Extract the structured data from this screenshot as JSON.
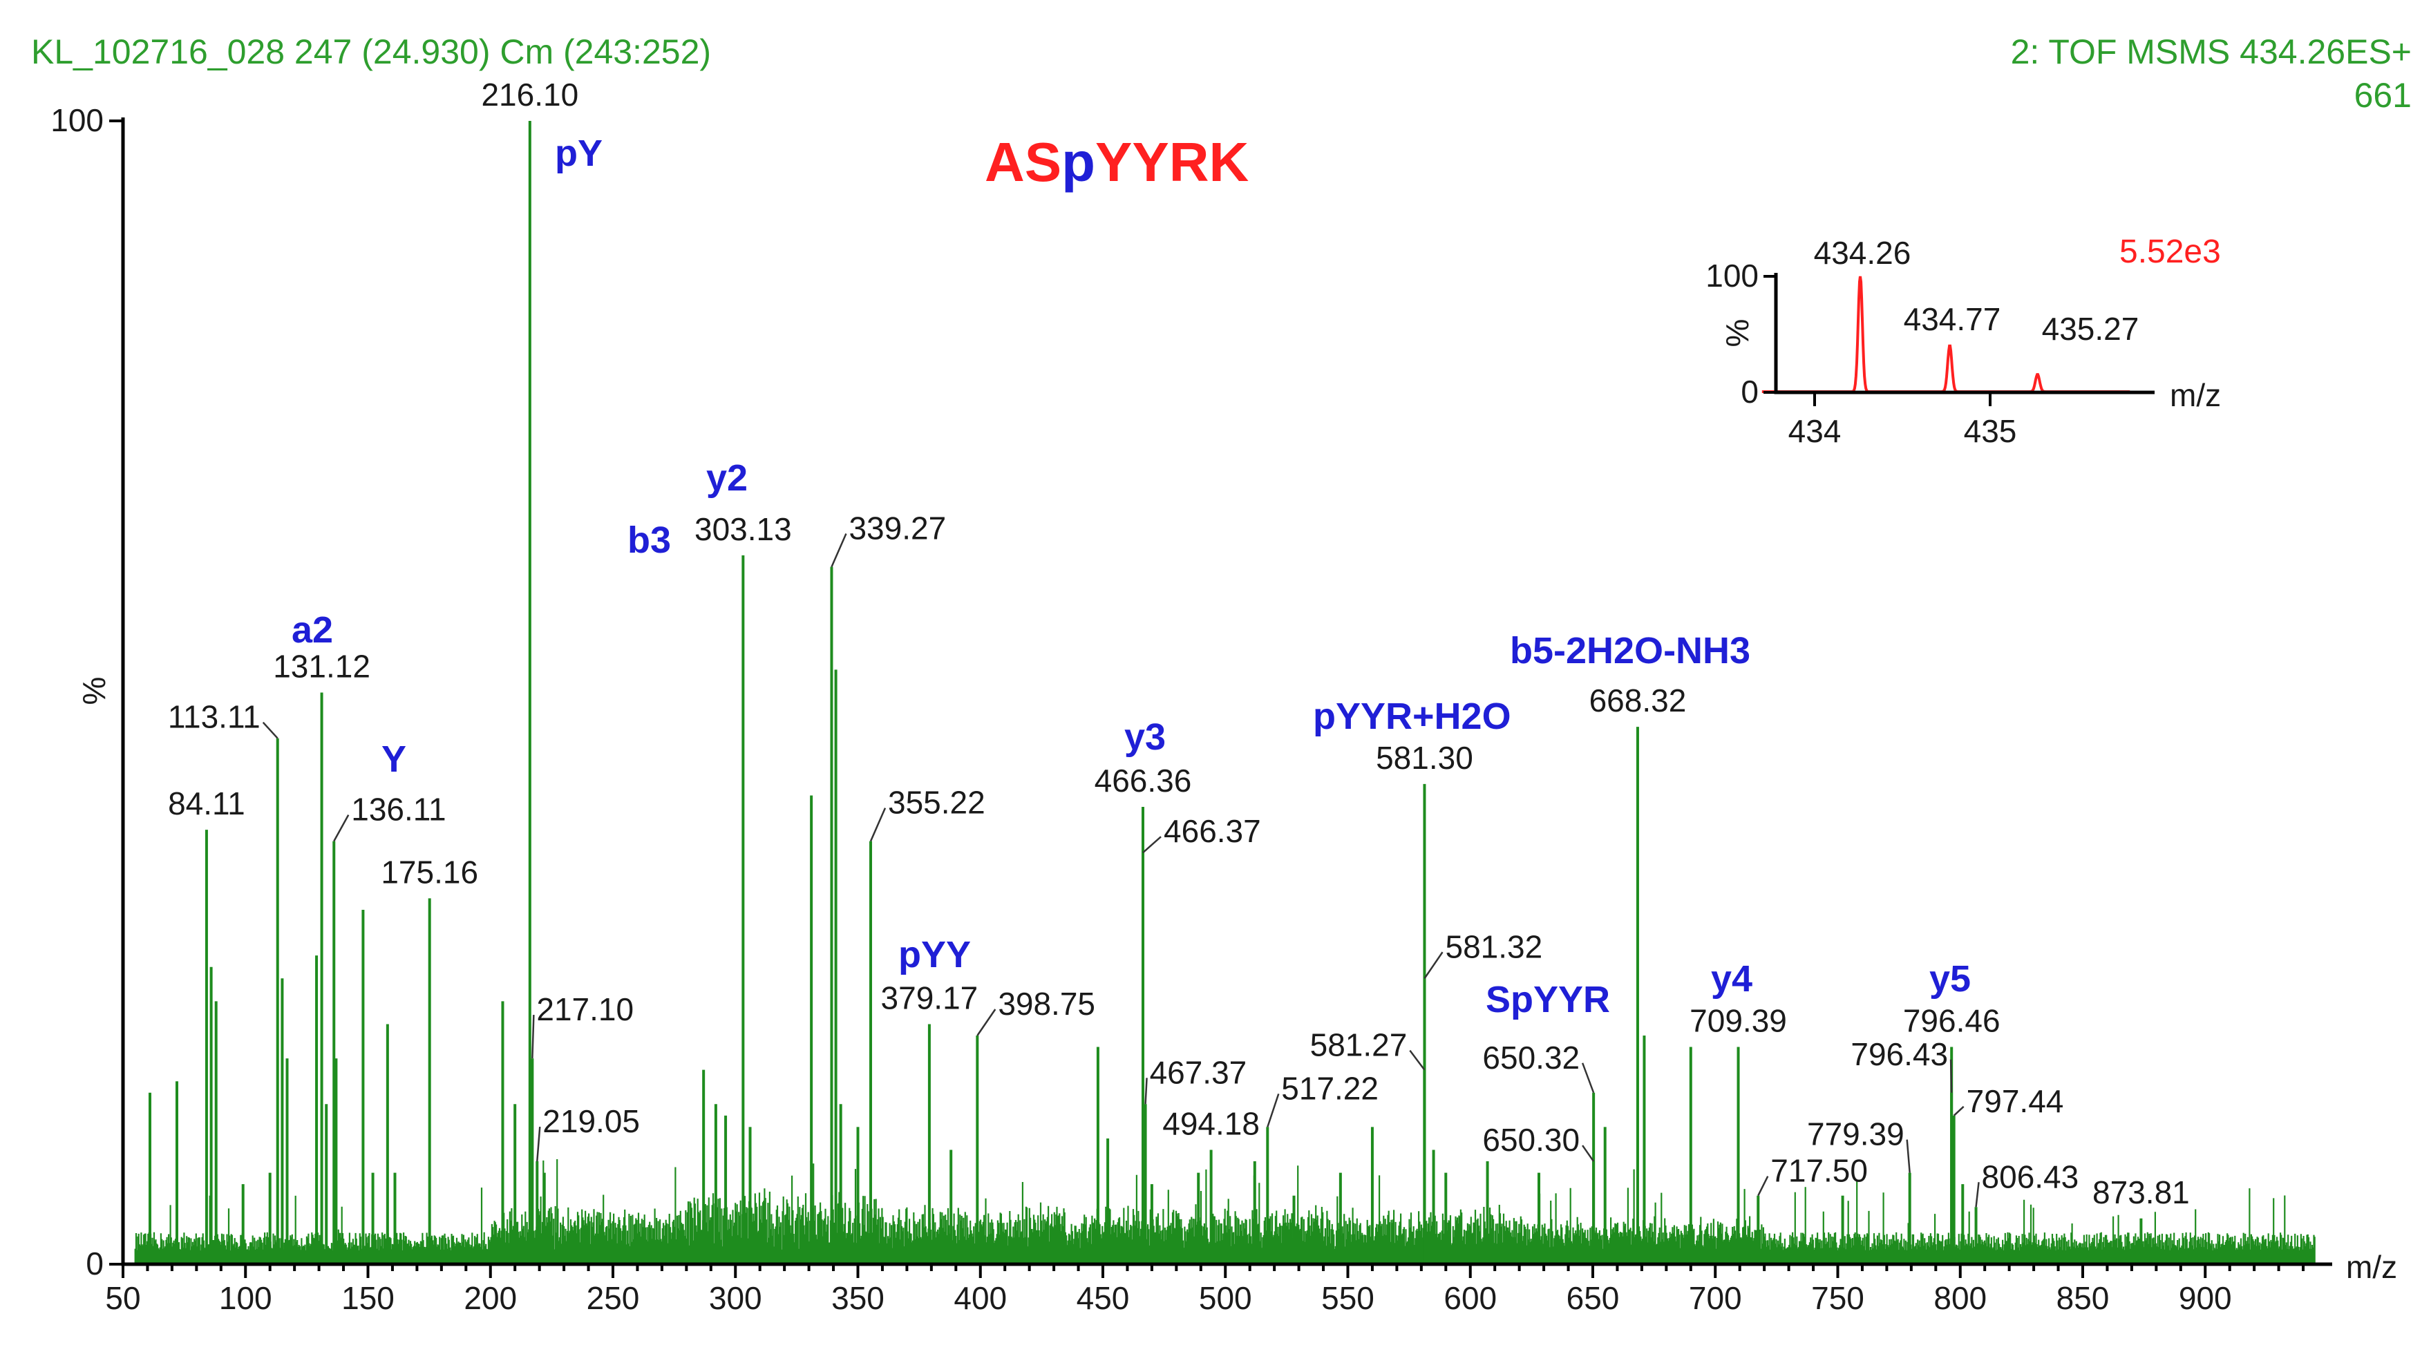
{
  "header": {
    "left": "KL_102716_028 247 (24.930) Cm (243:252)",
    "right_line1": "2: TOF MSMS 434.26ES+",
    "right_line2": "661"
  },
  "peptide": {
    "parts": [
      {
        "text": "AS",
        "color": "#ff2020"
      },
      {
        "text": "p",
        "color": "#1f1fd6"
      },
      {
        "text": "YYRK",
        "color": "#ff2020"
      }
    ]
  },
  "colors": {
    "spectrum": "#1e8c1e",
    "ion_label": "#1f1fd6",
    "inset": "#ff2020",
    "header": "#2e9e2e"
  },
  "chart_data": [
    {
      "type": "bar",
      "title": "",
      "xlabel": "m/z",
      "ylabel": "%",
      "xlim": [
        50,
        945
      ],
      "ylim": [
        0,
        100
      ],
      "xticks": [
        50,
        100,
        150,
        200,
        250,
        300,
        350,
        400,
        450,
        500,
        550,
        600,
        650,
        700,
        750,
        800,
        850,
        900
      ],
      "yticks": [
        0,
        100
      ],
      "peaks": [
        {
          "mz": 84.11,
          "intensity": 38,
          "label": "84.11"
        },
        {
          "mz": 113.11,
          "intensity": 46,
          "label": "113.11"
        },
        {
          "mz": 131.12,
          "intensity": 50,
          "label": "131.12"
        },
        {
          "mz": 136.11,
          "intensity": 37,
          "label": "136.11"
        },
        {
          "mz": 175.16,
          "intensity": 32,
          "label": "175.16"
        },
        {
          "mz": 216.1,
          "intensity": 100,
          "label": "216.10"
        },
        {
          "mz": 217.1,
          "intensity": 18,
          "label": "217.10"
        },
        {
          "mz": 219.05,
          "intensity": 9,
          "label": "219.05"
        },
        {
          "mz": 303.13,
          "intensity": 62,
          "label": "303.13"
        },
        {
          "mz": 339.27,
          "intensity": 61,
          "label": "339.27"
        },
        {
          "mz": 355.22,
          "intensity": 37,
          "label": "355.22"
        },
        {
          "mz": 379.17,
          "intensity": 21,
          "label": "379.17"
        },
        {
          "mz": 398.75,
          "intensity": 20,
          "label": "398.75"
        },
        {
          "mz": 466.36,
          "intensity": 40,
          "label": "466.36"
        },
        {
          "mz": 466.37,
          "intensity": 36,
          "label": "466.37"
        },
        {
          "mz": 467.37,
          "intensity": 14,
          "label": "467.37"
        },
        {
          "mz": 494.18,
          "intensity": 10,
          "label": "494.18"
        },
        {
          "mz": 517.22,
          "intensity": 12,
          "label": "517.22"
        },
        {
          "mz": 581.27,
          "intensity": 17,
          "label": "581.27"
        },
        {
          "mz": 581.3,
          "intensity": 42,
          "label": "581.30"
        },
        {
          "mz": 581.32,
          "intensity": 25,
          "label": "581.32"
        },
        {
          "mz": 650.32,
          "intensity": 15,
          "label": "650.32"
        },
        {
          "mz": 650.3,
          "intensity": 9,
          "label": "650.30"
        },
        {
          "mz": 668.32,
          "intensity": 47,
          "label": "668.32"
        },
        {
          "mz": 709.39,
          "intensity": 19,
          "label": "709.39"
        },
        {
          "mz": 717.5,
          "intensity": 6,
          "label": "717.50"
        },
        {
          "mz": 779.39,
          "intensity": 8,
          "label": "779.39"
        },
        {
          "mz": 796.43,
          "intensity": 15,
          "label": "796.43"
        },
        {
          "mz": 796.46,
          "intensity": 19,
          "label": "796.46"
        },
        {
          "mz": 797.44,
          "intensity": 13,
          "label": "797.44"
        },
        {
          "mz": 806.43,
          "intensity": 5,
          "label": "806.43"
        },
        {
          "mz": 873.81,
          "intensity": 4,
          "label": "873.81"
        }
      ],
      "unlabeled_peaks": [
        [
          61,
          15
        ],
        [
          72,
          16
        ],
        [
          86,
          26
        ],
        [
          88,
          23
        ],
        [
          99,
          7
        ],
        [
          110,
          8
        ],
        [
          115,
          25
        ],
        [
          117,
          18
        ],
        [
          129,
          27
        ],
        [
          133,
          14
        ],
        [
          137,
          18
        ],
        [
          148,
          31
        ],
        [
          152,
          8
        ],
        [
          158,
          21
        ],
        [
          161,
          8
        ],
        [
          205,
          23
        ],
        [
          210,
          14
        ],
        [
          222,
          8
        ],
        [
          287,
          17
        ],
        [
          292,
          14
        ],
        [
          296,
          13
        ],
        [
          306,
          12
        ],
        [
          331,
          41
        ],
        [
          341,
          52
        ],
        [
          343,
          14
        ],
        [
          350,
          12
        ],
        [
          388,
          10
        ],
        [
          448,
          19
        ],
        [
          452,
          11
        ],
        [
          470,
          7
        ],
        [
          489,
          8
        ],
        [
          512,
          9
        ],
        [
          528,
          6
        ],
        [
          547,
          8
        ],
        [
          560,
          12
        ],
        [
          585,
          10
        ],
        [
          590,
          8
        ],
        [
          607,
          9
        ],
        [
          628,
          8
        ],
        [
          655,
          12
        ],
        [
          671,
          20
        ],
        [
          690,
          19
        ],
        [
          752,
          6
        ],
        [
          801,
          7
        ]
      ],
      "ion_labels": [
        "pY",
        "y2",
        "b3",
        "a2",
        "Y",
        "pYY",
        "y3",
        "pYYR+H2O",
        "b5-2H2O-NH3",
        "SpYYR",
        "y4",
        "y5"
      ]
    },
    {
      "type": "line",
      "title": "",
      "xlabel": "m/z",
      "ylabel": "%",
      "xlim": [
        433.7,
        435.8
      ],
      "ylim": [
        0,
        100
      ],
      "xticks": [
        434,
        435
      ],
      "yticks": [
        0,
        100
      ],
      "intensity_label": "5.52e3",
      "peaks": [
        {
          "mz": 434.26,
          "intensity": 100,
          "label": "434.26"
        },
        {
          "mz": 434.77,
          "intensity": 40,
          "label": "434.77"
        },
        {
          "mz": 435.27,
          "intensity": 15,
          "label": "435.27"
        }
      ]
    }
  ]
}
